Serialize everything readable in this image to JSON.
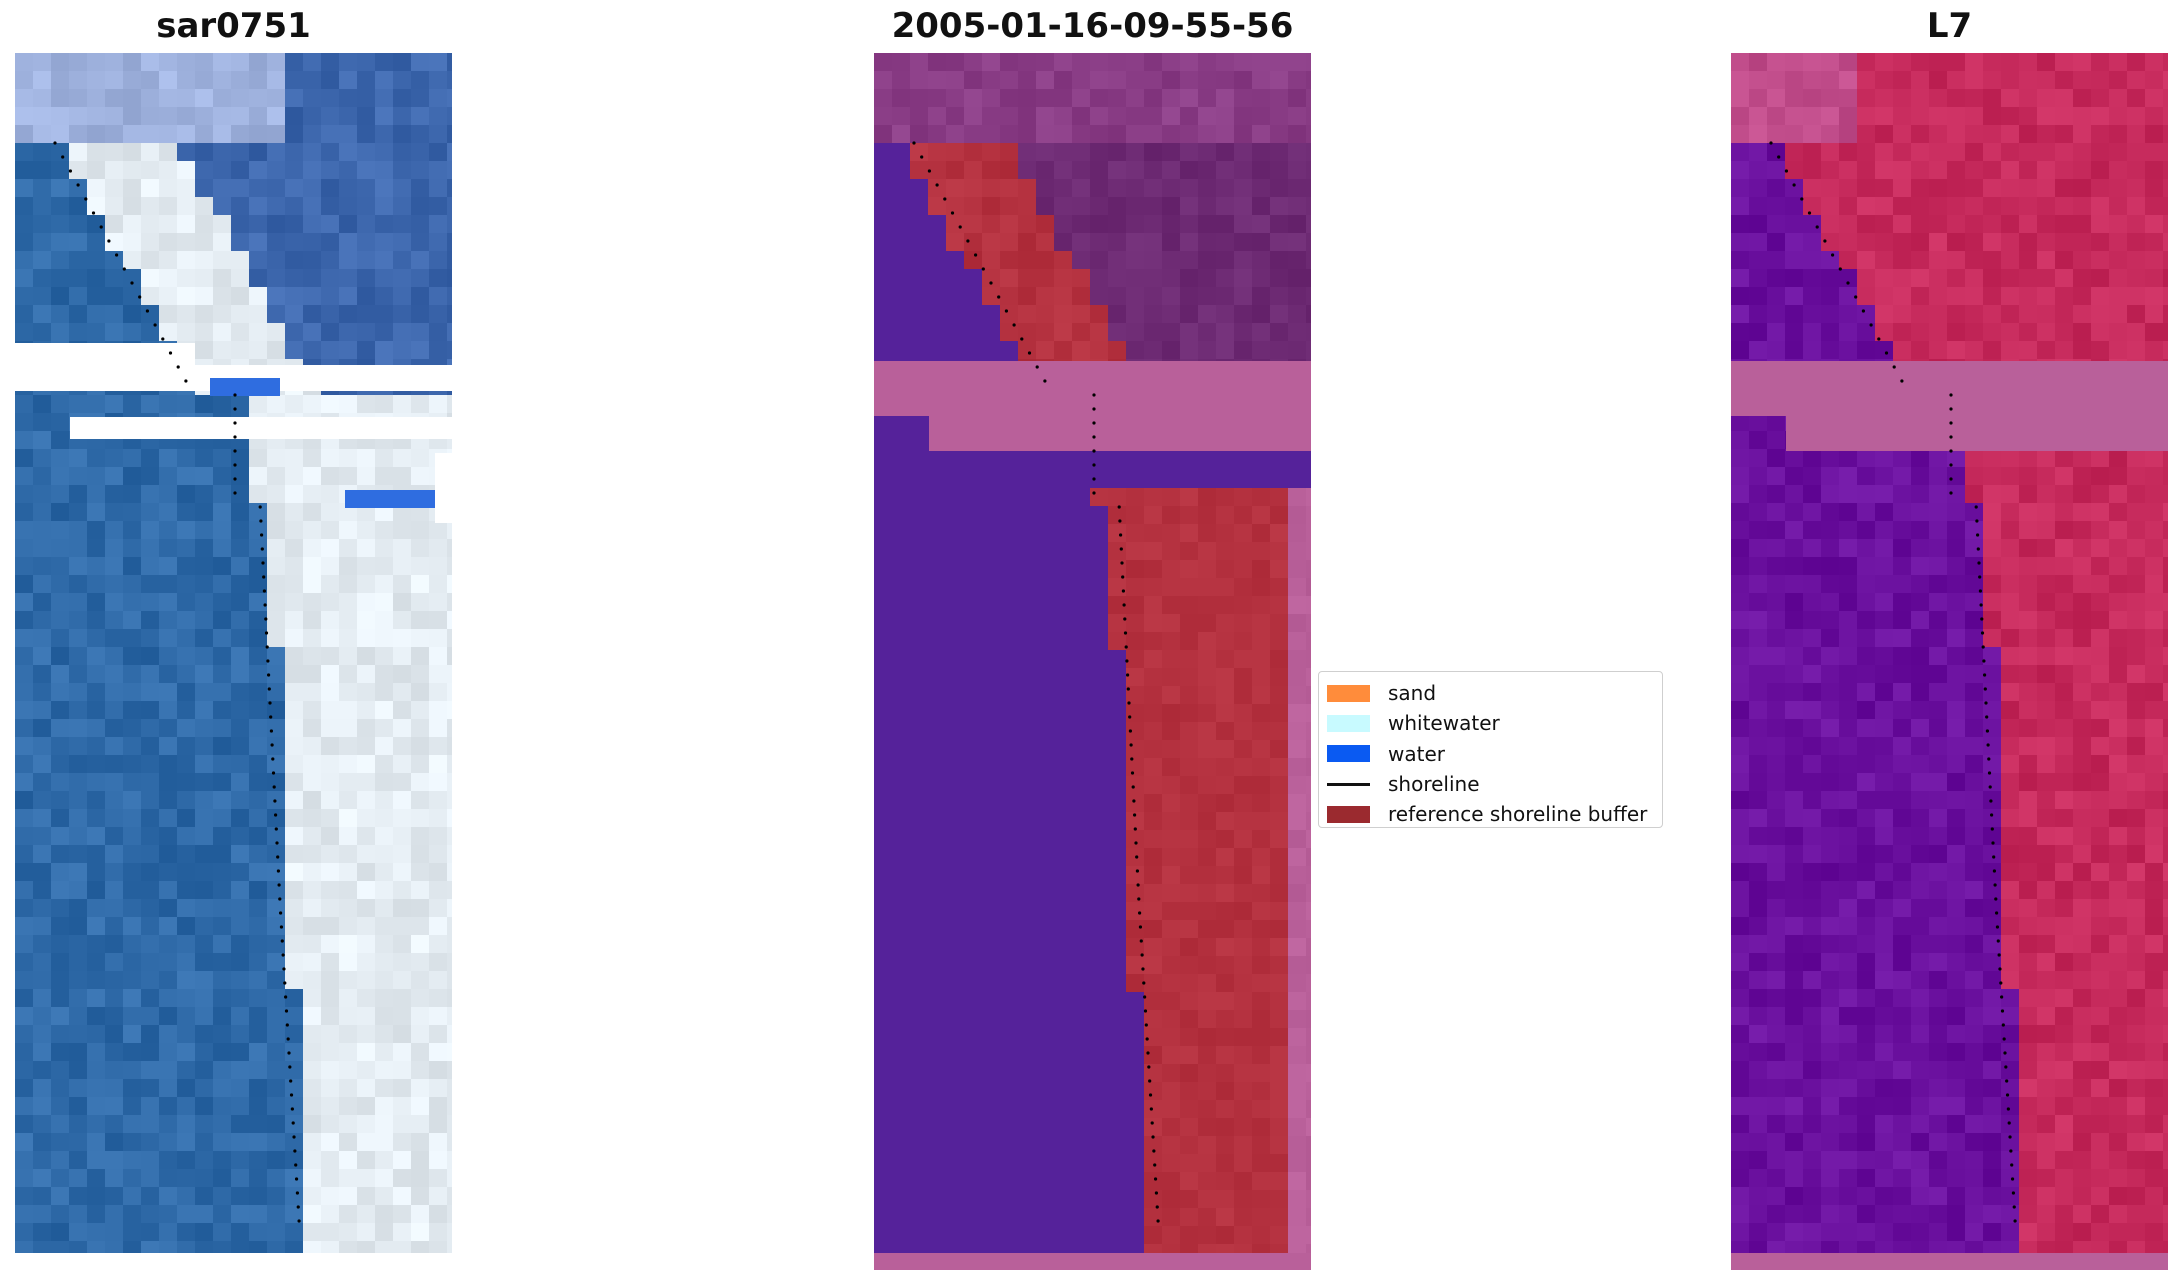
{
  "panels": [
    {
      "title": "sar0751"
    },
    {
      "title": "2005-01-16-09-55-56"
    },
    {
      "title": "L7"
    }
  ],
  "legend": {
    "entries": [
      {
        "label": "sand",
        "kind": "patch",
        "color": "#ff8c3b"
      },
      {
        "label": "whitewater",
        "kind": "patch",
        "color": "#c8faff"
      },
      {
        "label": "water",
        "kind": "patch",
        "color": "#0a5af2"
      },
      {
        "label": "shoreline",
        "kind": "line",
        "color": "#000000"
      },
      {
        "label": "reference shoreline buffer",
        "kind": "patch",
        "color": "#9b2a2f"
      }
    ]
  },
  "colors": {
    "rgb_water": "#2f6aa8",
    "rgb_whitewater": "#e4ecf2",
    "rgb_land_top": "#3d67ad",
    "class_water": "#55229a",
    "class_buffer": "#b4313f",
    "class_nodata_band": "#b9609a",
    "class_land": "#6d2a73",
    "l7_water": "#6a109e",
    "l7_land": "#c62a5c",
    "l7_nodata_band": "#b9609a"
  }
}
